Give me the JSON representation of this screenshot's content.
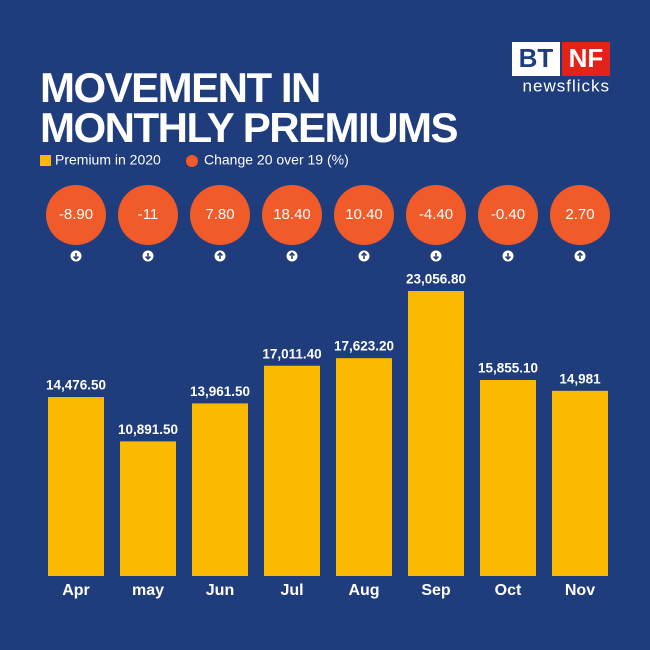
{
  "chart_data": {
    "type": "bar",
    "title": "MOVEMENT IN MONTHLY PREMIUMS",
    "logo": {
      "left": "BT",
      "right": "NF",
      "tagline": "newsflicks"
    },
    "categories": [
      "Apr",
      "may",
      "Jun",
      "Jul",
      "Aug",
      "Sep",
      "Oct",
      "Nov"
    ],
    "series": [
      {
        "name": "Premium in 2020",
        "color": "#fbb900",
        "values": [
          14476.5,
          10891.5,
          13961.5,
          17011.4,
          17623.2,
          23056.8,
          15855.1,
          14981
        ],
        "value_labels": [
          "14,476.50",
          "10,891.50",
          "13,961.50",
          "17,011.40",
          "17,623.20",
          "23,056.80",
          "15,855.10",
          "14,981"
        ]
      },
      {
        "name": "Change 20 over 19 (%)",
        "color": "#f15a29",
        "values": [
          -8.9,
          -11,
          7.8,
          18.4,
          10.4,
          -4.4,
          -0.4,
          2.7
        ],
        "value_labels": [
          "-8.90",
          "-11",
          "7.80",
          "18.40",
          "10.40",
          "-4.40",
          "-0.40",
          "2.70"
        ]
      }
    ]
  }
}
